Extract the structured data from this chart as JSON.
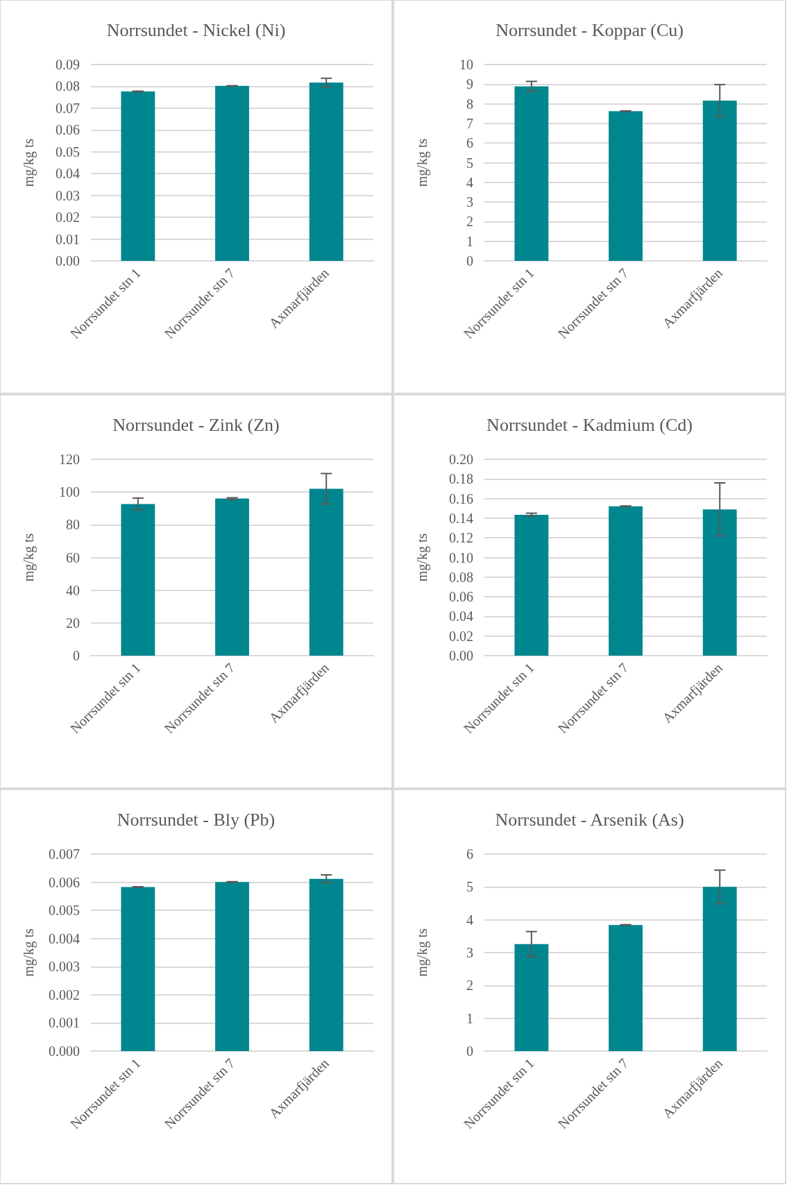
{
  "chart_data": [
    {
      "type": "bar",
      "title": "Norrsundet - Nickel (Ni)",
      "ylabel": "mg/kg ts",
      "categories": [
        "Norrsundet stn 1",
        "Norrsundet stn 7",
        "Axmarfjärden"
      ],
      "values": [
        0.0777,
        0.0802,
        0.0817
      ],
      "errors": [
        0.0001,
        0.0001,
        0.002
      ],
      "color": "#00868f",
      "ylim": [
        0,
        0.09
      ],
      "yticks": [
        {
          "value": 0,
          "label": "0.00"
        },
        0.01,
        0.02,
        0.03,
        0.04,
        0.05,
        0.06,
        0.07,
        0.08,
        0.09
      ],
      "grid": "y"
    },
    {
      "type": "bar",
      "title": "Norrsundet - Koppar (Cu)",
      "ylabel": "mg/kg ts",
      "categories": [
        "Norrsundet stn 1",
        "Norrsundet stn 7",
        "Axmarfjärden"
      ],
      "values": [
        8.89,
        7.62,
        8.16
      ],
      "errors": [
        0.25,
        0.02,
        0.82
      ],
      "color": "#00868f",
      "ylim": [
        0,
        10
      ],
      "yticks": [
        0,
        1,
        2,
        3,
        4,
        5,
        6,
        7,
        8,
        9,
        10
      ],
      "grid": "y"
    },
    {
      "type": "bar",
      "title": "Norrsundet - Zink (Zn)",
      "ylabel": "mg/kg ts",
      "categories": [
        "Norrsundet stn 1",
        "Norrsundet stn 7",
        "Axmarfjärden"
      ],
      "values": [
        92.7,
        96.0,
        102.0
      ],
      "errors": [
        3.6,
        0.5,
        9.3
      ],
      "color": "#00868f",
      "ylim": [
        0,
        120
      ],
      "yticks": [
        0,
        20,
        40,
        60,
        80,
        100,
        120
      ],
      "grid": "y"
    },
    {
      "type": "bar",
      "title": "Norrsundet - Kadmium (Cd)",
      "ylabel": "mg/kg ts",
      "categories": [
        "Norrsundet stn 1",
        "Norrsundet stn 7",
        "Axmarfjärden"
      ],
      "values": [
        0.1434,
        0.1522,
        0.149
      ],
      "errors": [
        0.0017,
        0.0003,
        0.027
      ],
      "color": "#00868f",
      "ylim": [
        0,
        0.2
      ],
      "yticks": [
        {
          "value": 0,
          "label": "0.00"
        },
        0.02,
        0.04,
        0.06,
        0.08,
        {
          "value": 0.1,
          "label": "0.10"
        },
        0.12,
        0.14,
        0.16,
        0.18,
        {
          "value": 0.2,
          "label": "0.20"
        }
      ],
      "grid": "y"
    },
    {
      "type": "bar",
      "title": "Norrsundet - Bly (Pb)",
      "ylabel": "mg/kg ts",
      "categories": [
        "Norrsundet stn 1",
        "Norrsundet stn 7",
        "Axmarfjärden"
      ],
      "values": [
        0.00583,
        0.00601,
        0.00612
      ],
      "errors": [
        1e-05,
        1e-05,
        0.00014
      ],
      "color": "#00868f",
      "ylim": [
        0,
        0.007
      ],
      "yticks": [
        {
          "value": 0,
          "label": "0.000"
        },
        0.001,
        0.002,
        0.003,
        0.004,
        0.005,
        0.006,
        0.007
      ],
      "grid": "y"
    },
    {
      "type": "bar",
      "title": "Norrsundet - Arsenik (As)",
      "ylabel": "mg/kg ts",
      "categories": [
        "Norrsundet stn 1",
        "Norrsundet stn 7",
        "Axmarfjärden"
      ],
      "values": [
        3.26,
        3.84,
        5.0
      ],
      "errors": [
        0.38,
        0.01,
        0.51
      ],
      "color": "#00868f",
      "ylim": [
        0,
        6
      ],
      "yticks": [
        0,
        1,
        2,
        3,
        4,
        5,
        6
      ],
      "grid": "y"
    }
  ]
}
